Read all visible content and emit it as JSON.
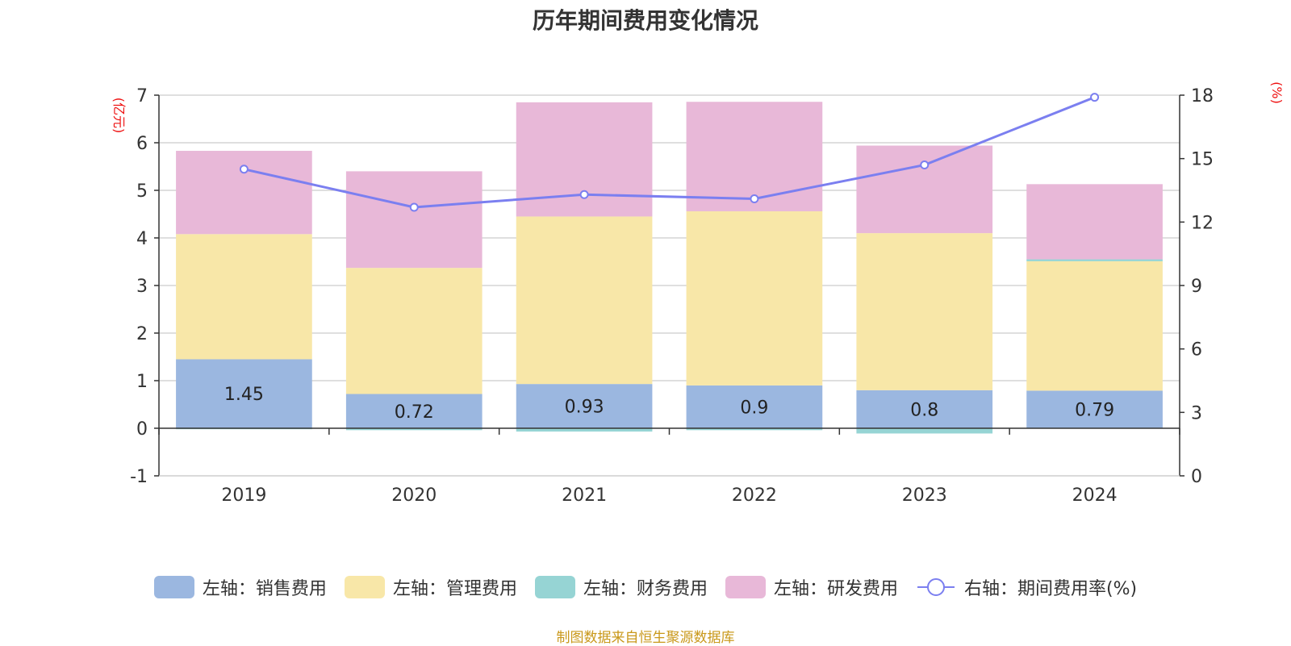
{
  "chart_data": {
    "type": "bar",
    "title": "历年期间费用变化情况",
    "categories": [
      "2019",
      "2020",
      "2021",
      "2022",
      "2023",
      "2024"
    ],
    "left_axis": {
      "unit_label": "(亿元)",
      "ylim": [
        -1,
        7
      ],
      "ticks": [
        "-1",
        "0",
        "1",
        "2",
        "3",
        "4",
        "5",
        "6",
        "7"
      ]
    },
    "right_axis": {
      "unit_label": "(%)",
      "ylim": [
        0,
        18
      ],
      "ticks": [
        "0",
        "3",
        "6",
        "9",
        "12",
        "15",
        "18"
      ]
    },
    "series": [
      {
        "name": "左轴：销售费用",
        "type": "bar",
        "color": "#9bb7e0",
        "values": [
          1.45,
          0.72,
          0.93,
          0.9,
          0.8,
          0.79
        ],
        "labels": [
          "1.45",
          "0.72",
          "0.93",
          "0.9",
          "0.8",
          "0.79"
        ]
      },
      {
        "name": "左轴：管理费用",
        "type": "bar",
        "color": "#f8e7a8",
        "values": [
          2.63,
          2.65,
          3.52,
          3.66,
          3.3,
          2.72
        ]
      },
      {
        "name": "左轴：财务费用",
        "type": "bar",
        "color": "#96d4d4",
        "values": [
          -0.02,
          -0.04,
          -0.07,
          -0.04,
          -0.11,
          0.04
        ]
      },
      {
        "name": "左轴：研发费用",
        "type": "bar",
        "color": "#e8b8d8",
        "values": [
          1.75,
          2.03,
          2.4,
          2.3,
          1.84,
          1.58
        ]
      },
      {
        "name": "右轴：期间费用率(%)",
        "type": "line",
        "axis": "right",
        "color": "#7b7ff0",
        "values": [
          14.5,
          12.7,
          13.3,
          13.1,
          14.7,
          17.9
        ]
      }
    ],
    "legend_position": "bottom",
    "grid": true
  },
  "source_note": "制图数据来自恒生聚源数据库"
}
